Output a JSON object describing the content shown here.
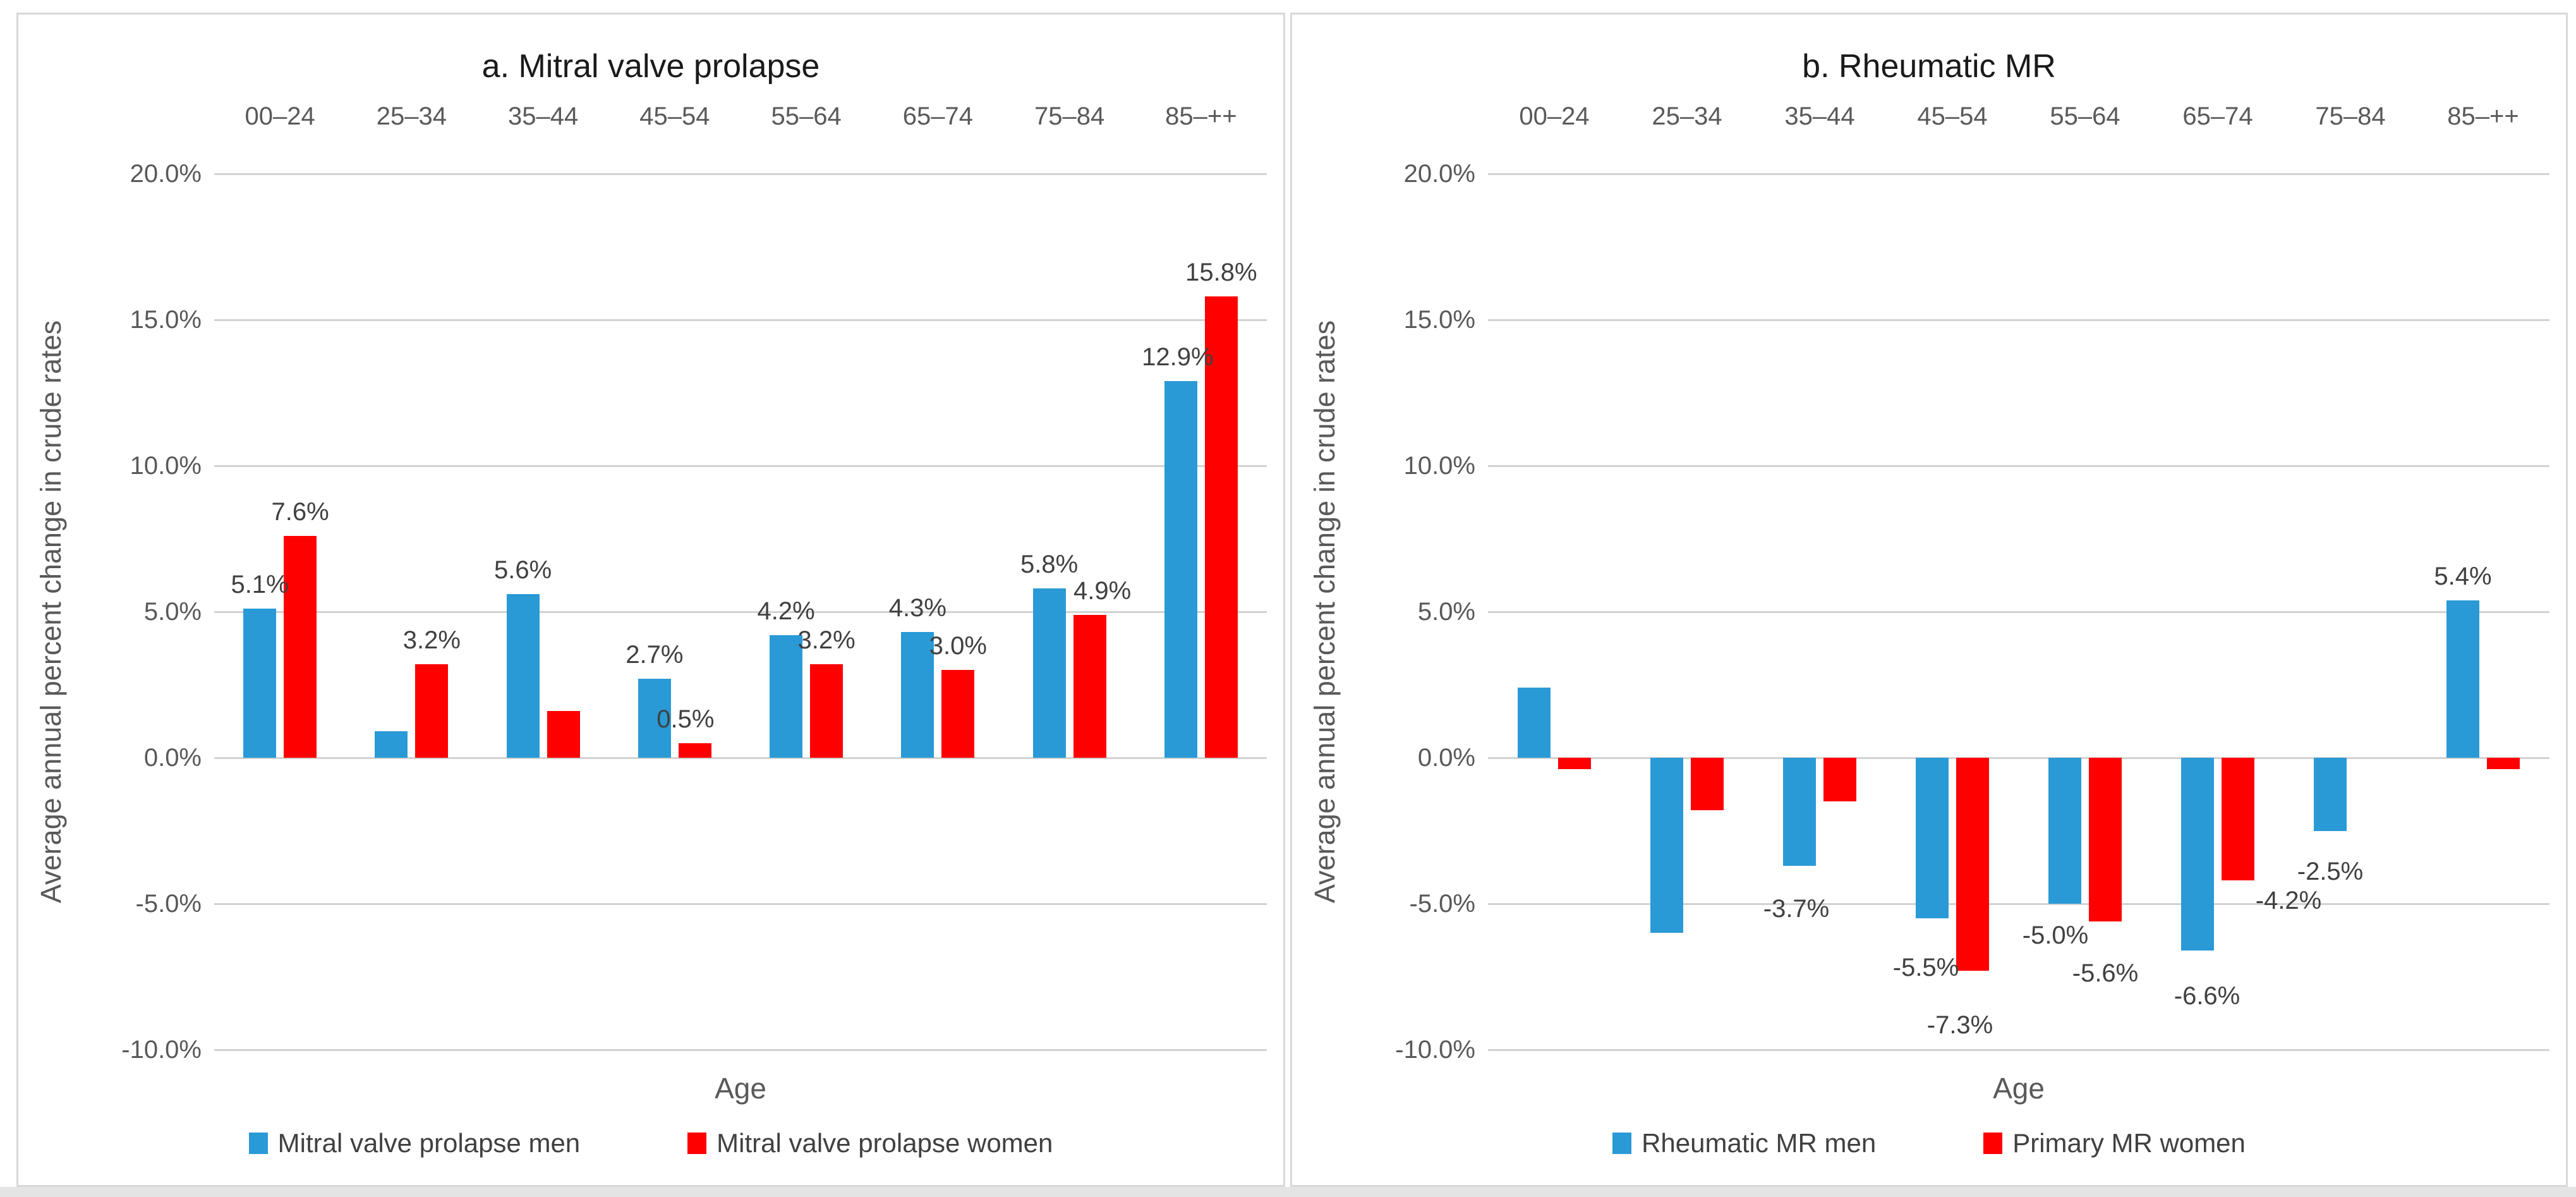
{
  "chart_data": [
    {
      "type": "bar",
      "panel": "a",
      "title": "a. Mitral valve prolapse",
      "xlabel": "Age",
      "ylabel": "Average annual percent change in crude rates",
      "categories": [
        "00–24",
        "25–34",
        "35–44",
        "45–54",
        "55–64",
        "65–74",
        "75–84",
        "85–++"
      ],
      "y_tick_labels": [
        "20.0%",
        "15.0%",
        "10.0%",
        "5.0%",
        "0.0%",
        "-5.0%",
        "-10.0%"
      ],
      "ylim": [
        -10,
        20
      ],
      "grid_step": 5,
      "grid": true,
      "legend_position": "bottom",
      "series": [
        {
          "name": "Mitral valve prolapse men",
          "color": "#2A9AD7",
          "values": [
            5.1,
            0.9,
            5.6,
            2.7,
            4.2,
            4.3,
            5.8,
            12.9
          ],
          "labels": [
            "5.1%",
            null,
            "5.6%",
            "2.7%",
            "4.2%",
            "4.3%",
            "5.8%",
            "12.9%"
          ],
          "label_dx": [
            0,
            0,
            0,
            0,
            0,
            0,
            0,
            -5
          ],
          "label_dy": [
            0,
            0,
            0,
            0,
            0,
            0,
            0,
            0
          ]
        },
        {
          "name": "Mitral valve prolapse women",
          "color": "#FE0000",
          "values": [
            7.6,
            3.2,
            1.6,
            0.5,
            3.2,
            3.0,
            4.9,
            15.8
          ],
          "labels": [
            "7.6%",
            "3.2%",
            null,
            "0.5%",
            "3.2%",
            "3.0%",
            "4.9%",
            "15.8%"
          ],
          "label_dx": [
            0,
            0,
            0,
            -15,
            0,
            0,
            20,
            0
          ],
          "label_dy": [
            0,
            0,
            0,
            0,
            0,
            0,
            0,
            0
          ]
        }
      ]
    },
    {
      "type": "bar",
      "panel": "b",
      "title": "b. Rheumatic MR",
      "xlabel": "Age",
      "ylabel": "Average annual percent change in crude rates",
      "categories": [
        "00–24",
        "25–34",
        "35–44",
        "45–54",
        "55–64",
        "65–74",
        "75–84",
        "85–++"
      ],
      "y_tick_labels": [
        "20.0%",
        "15.0%",
        "10.0%",
        "5.0%",
        "0.0%",
        "-5.0%",
        "-10.0%"
      ],
      "ylim": [
        -10,
        20
      ],
      "grid_step": 5,
      "grid": true,
      "legend_position": "bottom",
      "series": [
        {
          "name": "Rheumatic MR men",
          "color": "#2A9AD7",
          "values": [
            2.4,
            -6.0,
            -3.7,
            -5.5,
            -5.0,
            -6.6,
            -2.5,
            5.4
          ],
          "labels": [
            null,
            null,
            "-3.7%",
            "-5.5%",
            "-5.0%",
            "-6.6%",
            "-2.5%",
            "5.4%"
          ],
          "label_dx": [
            0,
            0,
            -5,
            -10,
            -15,
            15,
            0,
            0
          ],
          "label_dy": [
            0,
            0,
            30,
            40,
            12,
            34,
            26,
            0
          ]
        },
        {
          "name": "Primary MR women",
          "color": "#FE0000",
          "values": [
            -0.4,
            -1.8,
            -1.5,
            -7.3,
            -5.6,
            -4.2,
            0.0,
            -0.4
          ],
          "labels": [
            null,
            null,
            null,
            "-7.3%",
            "-5.6%",
            "-4.2%",
            null,
            null
          ],
          "label_dx": [
            0,
            0,
            0,
            -20,
            0,
            80,
            0,
            0
          ],
          "label_dy": [
            0,
            0,
            0,
            48,
            44,
            -6,
            0,
            0
          ]
        }
      ]
    }
  ]
}
